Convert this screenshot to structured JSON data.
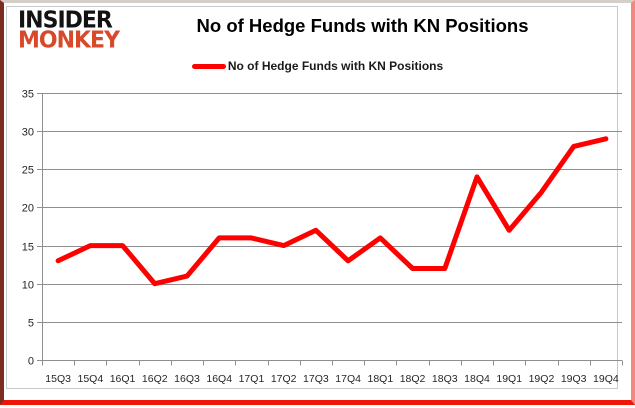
{
  "logo": {
    "line1": "INSIDER",
    "line2": "MONKEY"
  },
  "header": {
    "title": "No of Hedge Funds with KN Positions"
  },
  "legend": {
    "label": "No of Hedge Funds with KN Positions",
    "line_color": "#ff0000"
  },
  "chart_data": {
    "type": "line",
    "title": "No of Hedge Funds with KN Positions",
    "categories": [
      "15Q3",
      "15Q4",
      "16Q1",
      "16Q2",
      "16Q3",
      "16Q4",
      "17Q1",
      "17Q2",
      "17Q3",
      "17Q4",
      "18Q1",
      "18Q2",
      "18Q3",
      "18Q4",
      "19Q1",
      "19Q2",
      "19Q3",
      "19Q4"
    ],
    "series": [
      {
        "name": "No of Hedge Funds with KN Positions",
        "color": "#ff0000",
        "values": [
          13,
          15,
          15,
          10,
          11,
          16,
          16,
          15,
          17,
          13,
          16,
          12,
          12,
          24,
          17,
          22,
          28,
          29
        ]
      }
    ],
    "ylim": [
      0,
      35
    ],
    "ytick_step": 5,
    "yticks": [
      0,
      5,
      10,
      15,
      20,
      25,
      30,
      35
    ],
    "grid": true,
    "legend_position": "top-center",
    "xlabel": "",
    "ylabel": ""
  },
  "colors": {
    "line_red": "#ff0000",
    "logo_black": "#121212",
    "logo_orange": "#d8492b",
    "gridline_gray": "#8f8f8f",
    "tick_text": "#262626",
    "frame_dark": "#7c2d21",
    "frame_red": "#ef1608"
  }
}
